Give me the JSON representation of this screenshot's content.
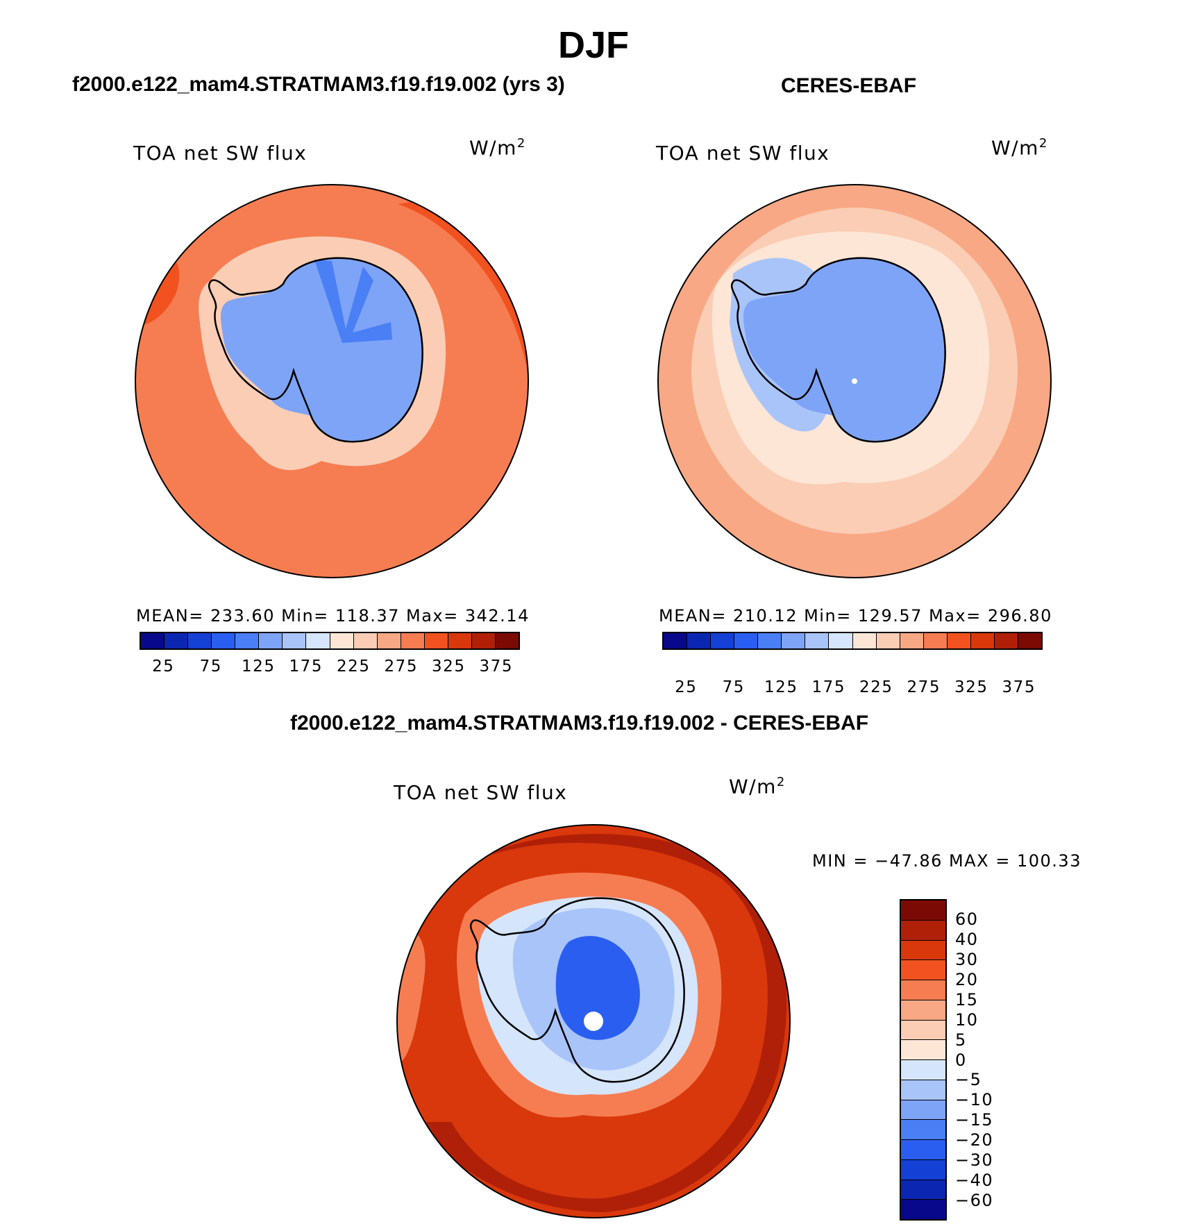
{
  "figure": {
    "title": "DJF",
    "panels": [
      {
        "id": "model",
        "title": "f2000.e122_mam4.STRATMAM3.f19.f19.002 (yrs 3)",
        "variable": "TOA net SW flux",
        "units": "W/m",
        "units_sup": "2",
        "stats": "MEAN=  233.60   Min=  118.37   Max=  342.14",
        "mean": 233.6,
        "min": 118.37,
        "max": 342.14
      },
      {
        "id": "obs",
        "title": "CERES-EBAF",
        "variable": "TOA net SW flux",
        "units": "W/m",
        "units_sup": "2",
        "stats": "MEAN=  210.12   Min=  129.57   Max=  296.80",
        "mean": 210.12,
        "min": 129.57,
        "max": 296.8
      },
      {
        "id": "diff",
        "title": "f2000.e122_mam4.STRATMAM3.f19.f19.002 - CERES-EBAF",
        "variable": "TOA net SW flux",
        "units": "W/m",
        "units_sup": "2",
        "stats": "MIN = −47.86  MAX = 100.33",
        "min": -47.86,
        "max": 100.33
      }
    ]
  },
  "colorbar_main": {
    "colors": [
      "#08088a",
      "#0b26b0",
      "#1440d6",
      "#2a5ef0",
      "#4a7ff5",
      "#7ea4f7",
      "#a9c4f9",
      "#d5e5fb",
      "#fde6d6",
      "#fbcdb5",
      "#f8a885",
      "#f67d52",
      "#f2521f",
      "#d9380c",
      "#b02008",
      "#7c0a04"
    ],
    "labels": [
      "25",
      "75",
      "125",
      "175",
      "225",
      "275",
      "325",
      "375"
    ]
  },
  "colorbar_diff": {
    "colors": [
      "#7c0a04",
      "#b02008",
      "#d9380c",
      "#f2521f",
      "#f67d52",
      "#f8a885",
      "#fbcdb5",
      "#fde6d6",
      "#d5e5fb",
      "#a9c4f9",
      "#7ea4f7",
      "#4a7ff5",
      "#2a5ef0",
      "#1440d6",
      "#0b26b0",
      "#08088a"
    ],
    "labels": [
      "60",
      "40",
      "30",
      "20",
      "15",
      "10",
      "5",
      "0",
      "−5",
      "−10",
      "−15",
      "−20",
      "−30",
      "−40",
      "−60"
    ]
  },
  "map_colors": {
    "model_ocean": "#f67d52",
    "model_ocean_hi": "#f2521f",
    "model_coast": "#fbcdb5",
    "model_ice": "#7ea4f7",
    "model_ice_dark": "#4a7ff5",
    "obs_ocean": "#f8a885",
    "obs_ocean_mid": "#fbcdb5",
    "obs_coast": "#fde6d6",
    "obs_ice": "#7ea4f7",
    "obs_ice_light": "#a9c4f9",
    "diff_ocean": "#d9380c",
    "diff_ocean_hi": "#b02008",
    "diff_coast": "#f67d52",
    "diff_ice": "#a9c4f9",
    "diff_ice_dark": "#2a5ef0",
    "diff_ice_light": "#d5e5fb"
  }
}
